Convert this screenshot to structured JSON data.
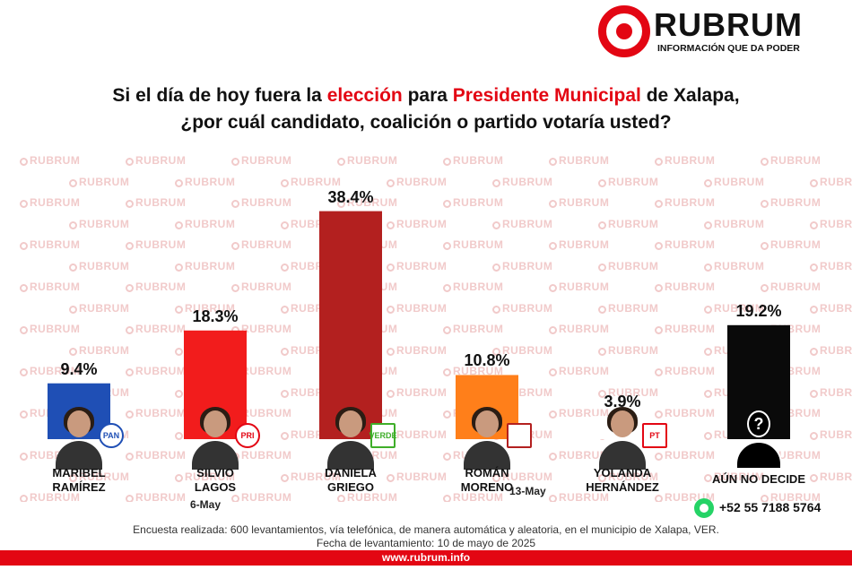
{
  "brand": {
    "name": "RUBRUM",
    "tagline": "INFORMACIÓN QUE DA PODER",
    "accent_color": "#e30613"
  },
  "watermark": "RUBRUM",
  "question": {
    "line1_part1": "Si el día de hoy fuera la",
    "line1_highlight1": "elección",
    "line1_part2": "para",
    "line1_highlight2": "Presidente Municipal",
    "line1_part3": "de Xalapa,",
    "line2": "¿por cuál candidato, coalición o partido votaría usted?"
  },
  "chart_data": {
    "type": "bar",
    "categories": [
      "MARIBEL RAMÍREZ",
      "SILVIO LAGOS",
      "DANIELA GRIEGO",
      "ROMÁN MORENO",
      "YOLANDA HERNÁNDEZ",
      "AÚN NO DECIDE"
    ],
    "values": [
      9.4,
      18.3,
      38.4,
      10.8,
      3.9,
      19.2
    ],
    "value_labels": [
      "9.4%",
      "18.3%",
      "38.4%",
      "10.8%",
      "3.9%",
      "19.2%"
    ],
    "name_lines": [
      [
        "MARIBEL",
        "RAMÍREZ"
      ],
      [
        "SILVIO",
        "LAGOS"
      ],
      [
        "DANIELA",
        "GRIEGO"
      ],
      [
        "ROMÁN",
        "MORENO"
      ],
      [
        "YOLANDA",
        "HERNÁNDEZ"
      ],
      [
        "AÚN NO DECIDE",
        ""
      ]
    ],
    "colors": [
      "#1f4fb5",
      "#f21c1c",
      "#b3201f",
      "#ff7f1a",
      "#ffffff",
      "#0a0a0a"
    ],
    "party_badges": [
      {
        "text": "PAN",
        "color": "#1f4fb5"
      },
      {
        "text": "PRI",
        "color": "#e30613"
      },
      {
        "text": "VERDE",
        "color": "#3fae29"
      },
      {
        "text": "",
        "color": "#b3201f"
      },
      {
        "text": "PT",
        "color": "#e30613"
      },
      {
        "text": "?",
        "color": "#0a0a0a"
      }
    ],
    "date_notes": [
      "",
      "6-May",
      "",
      "13-May",
      "",
      ""
    ],
    "ylim": [
      0,
      40
    ],
    "grid": false,
    "legend": "none"
  },
  "footer": {
    "phone": "+52 55 7188 5764",
    "methodology": "Encuesta realizada: 600 levantamientos, vía telefónica, de manera automática y aleatoria, en el municipio de Xalapa, VER.",
    "fieldwork_date": "Fecha de levantamiento: 10 de mayo de 2025",
    "url": "www.rubrum.info"
  }
}
